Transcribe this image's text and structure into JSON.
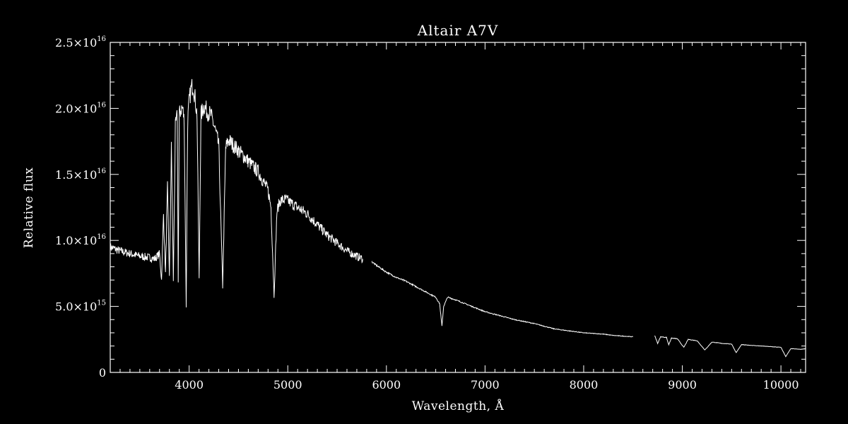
{
  "chart_data": {
    "type": "line",
    "title": "Altair   A7V",
    "xlabel": "Wavelength, Å",
    "ylabel": "Relative flux",
    "xlim": [
      3200,
      10250
    ],
    "ylim": [
      0,
      2.5e+16
    ],
    "grid": false,
    "colors": {
      "background": "#000000",
      "foreground": "#ffffff"
    },
    "x_ticks": [
      {
        "value": 4000,
        "label": "4000"
      },
      {
        "value": 5000,
        "label": "5000"
      },
      {
        "value": 6000,
        "label": "6000"
      },
      {
        "value": 7000,
        "label": "7000"
      },
      {
        "value": 8000,
        "label": "8000"
      },
      {
        "value": 9000,
        "label": "9000"
      },
      {
        "value": 10000,
        "label": "10000"
      }
    ],
    "y_ticks": [
      {
        "value": 0,
        "mant": "0",
        "exp": ""
      },
      {
        "value": 5000000000000000.0,
        "mant": "5.0×10",
        "exp": "15"
      },
      {
        "value": 1e+16,
        "mant": "1.0×10",
        "exp": "16"
      },
      {
        "value": 1.5e+16,
        "mant": "1.5×10",
        "exp": "16"
      },
      {
        "value": 2e+16,
        "mant": "2.0×10",
        "exp": "16"
      },
      {
        "value": 2.5e+16,
        "mant": "2.5×10",
        "exp": "16"
      }
    ],
    "series": [
      {
        "segments": [
          [
            [
              3200,
              9500000000000000.0
            ],
            [
              3300,
              9200000000000000.0
            ],
            [
              3400,
              9000000000000000.0
            ],
            [
              3500,
              8800000000000000.0
            ],
            [
              3600,
              8700000000000000.0
            ],
            [
              3650,
              8600000000000000.0
            ],
            [
              3700,
              9000000000000000.0
            ],
            [
              3720,
              7000000000000000.0
            ],
            [
              3740,
              1.2e+16
            ],
            [
              3760,
              7500000000000000.0
            ],
            [
              3780,
              1.4e+16
            ],
            [
              3800,
              7200000000000000.0
            ],
            [
              3820,
              1.7e+16
            ],
            [
              3840,
              7000000000000000.0
            ],
            [
              3860,
              1.85e+16
            ],
            [
              3880,
              1.95e+16
            ],
            [
              3889,
              7000000000000000.0
            ],
            [
              3900,
              1.95e+16
            ],
            [
              3920,
              2e+16
            ],
            [
              3935,
              2e+16
            ],
            [
              3950,
              1.9e+16
            ],
            [
              3970,
              5000000000000000.0
            ],
            [
              3985,
              1.9e+16
            ],
            [
              4000,
              2.05e+16
            ],
            [
              4020,
              2.15e+16
            ],
            [
              4040,
              2.18e+16
            ],
            [
              4060,
              2.08e+16
            ],
            [
              4080,
              1.95e+16
            ],
            [
              4101,
              7000000000000000.0
            ],
            [
              4120,
              1.95e+16
            ],
            [
              4150,
              2.02e+16
            ],
            [
              4180,
              1.98e+16
            ],
            [
              4220,
              1.95e+16
            ],
            [
              4260,
              1.85e+16
            ],
            [
              4300,
              1.72e+16
            ],
            [
              4340,
              6500000000000000.0
            ],
            [
              4370,
              1.7e+16
            ],
            [
              4400,
              1.76e+16
            ],
            [
              4450,
              1.72e+16
            ],
            [
              4500,
              1.68e+16
            ],
            [
              4550,
              1.64e+16
            ],
            [
              4600,
              1.6e+16
            ],
            [
              4650,
              1.56e+16
            ],
            [
              4700,
              1.52e+16
            ],
            [
              4750,
              1.45e+16
            ],
            [
              4800,
              1.38e+16
            ],
            [
              4830,
              1.25e+16
            ],
            [
              4861,
              5800000000000000.0
            ],
            [
              4890,
              1.22e+16
            ],
            [
              4920,
              1.3e+16
            ],
            [
              4980,
              1.31e+16
            ],
            [
              5100,
              1.25e+16
            ],
            [
              5200,
              1.2e+16
            ],
            [
              5300,
              1.12e+16
            ],
            [
              5400,
              1.04e+16
            ],
            [
              5500,
              9800000000000000.0
            ],
            [
              5600,
              9200000000000000.0
            ],
            [
              5700,
              8800000000000000.0
            ],
            [
              5760,
              8600000000000000.0
            ]
          ],
          [
            [
              5850,
              8400000000000000.0
            ],
            [
              5900,
              8100000000000000.0
            ],
            [
              6000,
              7600000000000000.0
            ],
            [
              6100,
              7200000000000000.0
            ],
            [
              6200,
              6900000000000000.0
            ],
            [
              6300,
              6500000000000000.0
            ],
            [
              6400,
              6100000000000000.0
            ],
            [
              6500,
              5700000000000000.0
            ],
            [
              6540,
              5200000000000000.0
            ],
            [
              6563,
              3500000000000000.0
            ],
            [
              6580,
              5000000000000000.0
            ],
            [
              6620,
              5700000000000000.0
            ],
            [
              6700,
              5500000000000000.0
            ],
            [
              6800,
              5200000000000000.0
            ],
            [
              6900,
              4900000000000000.0
            ],
            [
              7000,
              4600000000000000.0
            ],
            [
              7100,
              4400000000000000.0
            ],
            [
              7200,
              4200000000000000.0
            ],
            [
              7300,
              4000000000000000.0
            ],
            [
              7400,
              3850000000000000.0
            ],
            [
              7500,
              3700000000000000.0
            ],
            [
              7600,
              3500000000000000.0
            ],
            [
              7700,
              3300000000000000.0
            ],
            [
              7800,
              3200000000000000.0
            ],
            [
              7900,
              3100000000000000.0
            ],
            [
              8000,
              3000000000000000.0
            ],
            [
              8100,
              2950000000000000.0
            ],
            [
              8200,
              2900000000000000.0
            ],
            [
              8300,
              2800000000000000.0
            ],
            [
              8400,
              2750000000000000.0
            ],
            [
              8500,
              2700000000000000.0
            ]
          ],
          [
            [
              8720,
              2800000000000000.0
            ],
            [
              8750,
              2200000000000000.0
            ],
            [
              8780,
              2700000000000000.0
            ],
            [
              8840,
              2650000000000000.0
            ],
            [
              8862,
              2100000000000000.0
            ],
            [
              8890,
              2600000000000000.0
            ],
            [
              8950,
              2550000000000000.0
            ],
            [
              9015,
              1900000000000000.0
            ],
            [
              9060,
              2500000000000000.0
            ],
            [
              9150,
              2400000000000000.0
            ],
            [
              9229,
              1700000000000000.0
            ],
            [
              9300,
              2300000000000000.0
            ],
            [
              9400,
              2200000000000000.0
            ],
            [
              9500,
              2150000000000000.0
            ],
            [
              9546,
              1500000000000000.0
            ],
            [
              9600,
              2100000000000000.0
            ],
            [
              9700,
              2050000000000000.0
            ],
            [
              9800,
              2000000000000000.0
            ],
            [
              9900,
              1950000000000000.0
            ],
            [
              10000,
              1900000000000000.0
            ],
            [
              10049,
              1200000000000000.0
            ],
            [
              10100,
              1800000000000000.0
            ],
            [
              10200,
              1750000000000000.0
            ],
            [
              10250,
              1800000000000000.0
            ]
          ]
        ]
      }
    ]
  }
}
